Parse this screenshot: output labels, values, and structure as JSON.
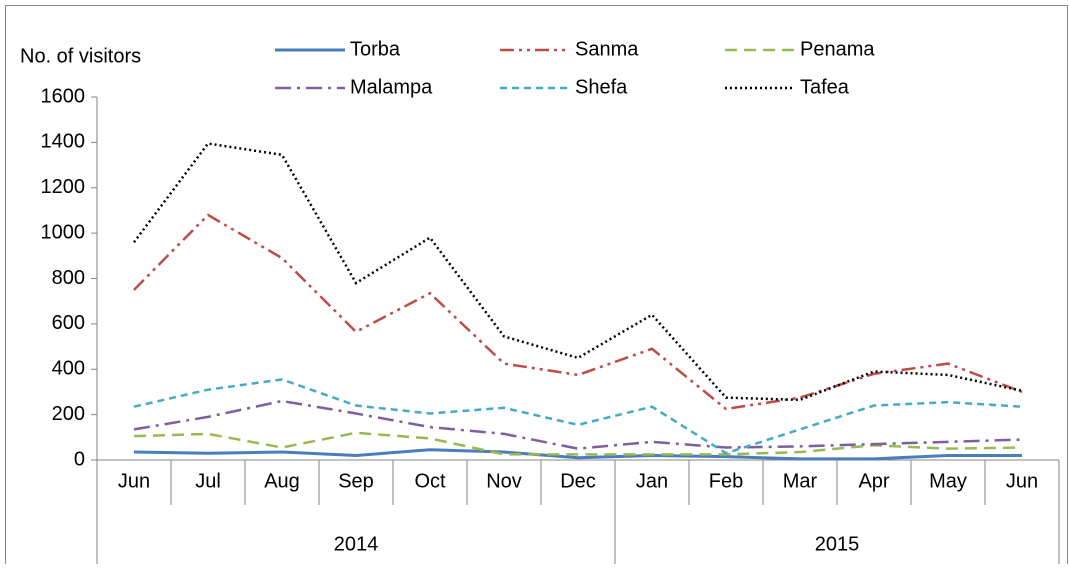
{
  "chart_data": {
    "type": "line",
    "ylabel": "No. of visitors",
    "categories": [
      "Jun",
      "Jul",
      "Aug",
      "Sep",
      "Oct",
      "Nov",
      "Dec",
      "Jan",
      "Feb",
      "Mar",
      "Apr",
      "May",
      "Jun"
    ],
    "category_groups": [
      "2014",
      "2014",
      "2014",
      "2014",
      "2014",
      "2014",
      "2014",
      "2015",
      "2015",
      "2015",
      "2015",
      "2015",
      "2015"
    ],
    "ylim": [
      0,
      1600
    ],
    "yticks": [
      0,
      200,
      400,
      600,
      800,
      1000,
      1200,
      1400,
      1600
    ],
    "grid": false,
    "series": [
      {
        "name": "Torba",
        "color": "#4a7ebb",
        "dash": "solid",
        "values": [
          35,
          30,
          35,
          20,
          45,
          35,
          10,
          20,
          15,
          5,
          5,
          20,
          20
        ]
      },
      {
        "name": "Sanma",
        "color": "#be4b48",
        "dash": "dashdotdot",
        "values": [
          750,
          1080,
          890,
          565,
          735,
          425,
          375,
          490,
          225,
          275,
          380,
          425,
          300
        ]
      },
      {
        "name": "Penama",
        "color": "#98b954",
        "dash": "dashed",
        "values": [
          105,
          115,
          55,
          120,
          95,
          25,
          25,
          25,
          25,
          35,
          65,
          50,
          55
        ]
      },
      {
        "name": "Malampa",
        "color": "#7d5fa0",
        "dash": "dashdot",
        "values": [
          135,
          190,
          260,
          205,
          145,
          115,
          50,
          80,
          55,
          60,
          70,
          80,
          90
        ]
      },
      {
        "name": "Shefa",
        "color": "#46aac5",
        "dash": "shortdash",
        "values": [
          235,
          310,
          355,
          240,
          205,
          230,
          155,
          235,
          30,
          135,
          240,
          255,
          235
        ]
      },
      {
        "name": "Tafea",
        "color": "#000000",
        "dash": "dotted",
        "values": [
          960,
          1395,
          1345,
          780,
          980,
          545,
          450,
          640,
          275,
          265,
          390,
          375,
          305
        ]
      }
    ]
  }
}
